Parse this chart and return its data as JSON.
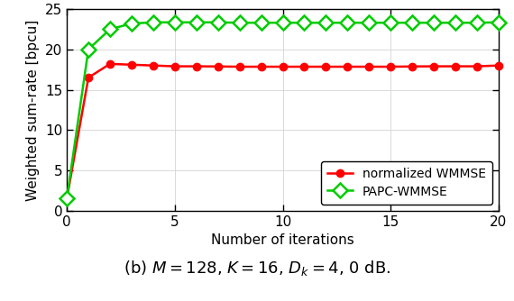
{
  "red_x": [
    0,
    1,
    2,
    3,
    4,
    5,
    6,
    7,
    8,
    9,
    10,
    11,
    12,
    13,
    14,
    15,
    16,
    17,
    18,
    19,
    20
  ],
  "red_y": [
    1.5,
    16.5,
    18.2,
    18.1,
    18.0,
    17.9,
    17.9,
    17.88,
    17.85,
    17.85,
    17.85,
    17.85,
    17.85,
    17.85,
    17.85,
    17.85,
    17.88,
    17.9,
    17.9,
    17.9,
    18.0
  ],
  "green_x": [
    0,
    1,
    2,
    3,
    4,
    5,
    6,
    7,
    8,
    9,
    10,
    11,
    12,
    13,
    14,
    15,
    16,
    17,
    18,
    19,
    20
  ],
  "green_y": [
    1.5,
    20.0,
    22.5,
    23.2,
    23.35,
    23.35,
    23.35,
    23.35,
    23.3,
    23.3,
    23.3,
    23.3,
    23.3,
    23.3,
    23.3,
    23.3,
    23.3,
    23.3,
    23.3,
    23.3,
    23.35
  ],
  "red_color": "#ff0000",
  "green_color": "#00cc00",
  "xlabel": "Number of iterations",
  "ylabel": "Weighted sum-rate [bpcu]",
  "xlim": [
    0,
    20
  ],
  "ylim": [
    0,
    25
  ],
  "yticks": [
    0,
    5,
    10,
    15,
    20,
    25
  ],
  "xticks": [
    0,
    5,
    10,
    15,
    20
  ],
  "legend_labels": [
    "normalized WMMSE",
    "PAPC-WMMSE"
  ],
  "caption": "(b) $M = 128$, $K = 16$, $D_k = 4$, 0 dB.",
  "linewidth": 1.8,
  "markersize_circle": 6,
  "markersize_diamond": 8,
  "grid_color": "#d3d3d3",
  "bg_color": "#ffffff",
  "legend_loc": "lower right",
  "legend_fontsize": 10,
  "tick_fontsize": 11,
  "label_fontsize": 11,
  "caption_fontsize": 13
}
